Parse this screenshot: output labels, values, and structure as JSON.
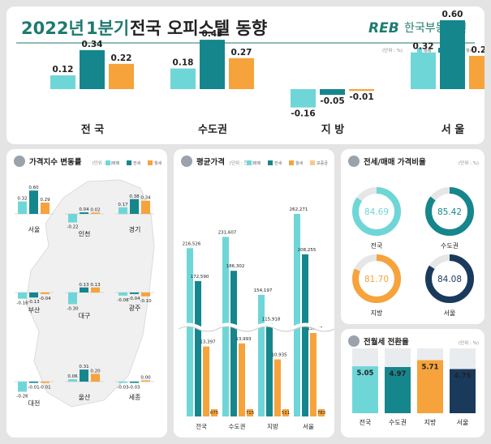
{
  "header": {
    "title_year": "2022년",
    "title_quarter": "1분기",
    "title_rest": "전국 오피스텔 동향",
    "logo_mark": "REB",
    "logo_text": "한국부동산원"
  },
  "colors": {
    "sale": "#6fd6d8",
    "jeonse": "#16868d",
    "wolse": "#f6a33c",
    "dark": "#1a3a5c",
    "accent": "#1f7a6f"
  },
  "charts": {
    "top": {
      "type": "bar",
      "legend": [
        "매매",
        "전세",
        "월세"
      ],
      "unit_label": "(단위 : %)",
      "categories": [
        "전 국",
        "수도권",
        "지 방",
        "서 울"
      ],
      "series": [
        {
          "name": "매매",
          "values": [
            0.12,
            0.18,
            -0.16,
            0.32
          ]
        },
        {
          "name": "전세",
          "values": [
            0.34,
            0.43,
            -0.05,
            0.6
          ]
        },
        {
          "name": "월세",
          "values": [
            0.22,
            0.27,
            -0.01,
            0.29
          ]
        }
      ]
    },
    "regions": {
      "type": "bar",
      "title": "가격지수 변동률",
      "unit_label": "(단위 : %)",
      "legend": [
        "매매",
        "전세",
        "월세"
      ],
      "items": [
        {
          "name": "서울",
          "values": [
            0.32,
            0.6,
            0.29
          ]
        },
        {
          "name": "인천",
          "values": [
            -0.22,
            0.04,
            0.02
          ]
        },
        {
          "name": "경기",
          "values": [
            0.17,
            0.38,
            0.34
          ]
        },
        {
          "name": "부산",
          "values": [
            -0.16,
            -0.13,
            -0.04
          ]
        },
        {
          "name": "대구",
          "values": [
            -0.3,
            0.13,
            0.13
          ]
        },
        {
          "name": "광주",
          "values": [
            -0.08,
            -0.04,
            -0.1
          ]
        },
        {
          "name": "대전",
          "values": [
            -0.26,
            -0.01,
            -0.01
          ]
        },
        {
          "name": "울산",
          "values": [
            0.06,
            0.31,
            0.2
          ]
        },
        {
          "name": "세종",
          "values": [
            -0.03,
            -0.03,
            0.0
          ]
        }
      ]
    },
    "avg_price": {
      "type": "bar",
      "title": "평균가격",
      "unit_label": "(단위 : 천원)",
      "legend": [
        "매매",
        "전세",
        "월세",
        "보증금"
      ],
      "categories": [
        "전국",
        "수도권",
        "지방",
        "서울"
      ],
      "series": [
        {
          "name": "매매",
          "values": [
            216526,
            231607,
            154197,
            262271
          ]
        },
        {
          "name": "전세",
          "values": [
            172590,
            186302,
            115918,
            208255
          ]
        },
        {
          "name": "보증금",
          "values": [
            13397,
            13993,
            10935,
            15982
          ]
        },
        {
          "name": "월세",
          "values": [
            675,
            715,
            511,
            783
          ]
        }
      ],
      "labels": {
        "매매": [
          "216,526",
          "231,607",
          "154,197",
          "262,271"
        ],
        "전세": [
          "172,590",
          "186,302",
          "115,918",
          "208,255"
        ],
        "보증금": [
          "13,397",
          "13,993",
          "10,935",
          "15,982"
        ],
        "월세": [
          "675",
          "715",
          "511",
          "783"
        ]
      }
    },
    "ratio": {
      "type": "pie",
      "title": "전세/매매 가격비율",
      "unit_label": "(단위 : %)",
      "items": [
        {
          "name": "전국",
          "value": 84.69,
          "color": "#6fd6d8"
        },
        {
          "name": "수도권",
          "value": 85.42,
          "color": "#16868d"
        },
        {
          "name": "지방",
          "value": 81.7,
          "color": "#f6a33c"
        },
        {
          "name": "서울",
          "value": 84.08,
          "color": "#1a3a5c"
        }
      ]
    },
    "conversion": {
      "type": "bar",
      "title": "전월세 전환율",
      "unit_label": "(단위 : %)",
      "categories": [
        "전국",
        "수도권",
        "지방",
        "서울"
      ],
      "values": [
        5.05,
        4.97,
        5.71,
        4.75
      ],
      "colors": [
        "#6fd6d8",
        "#16868d",
        "#f6a33c",
        "#1a3a5c"
      ]
    }
  }
}
